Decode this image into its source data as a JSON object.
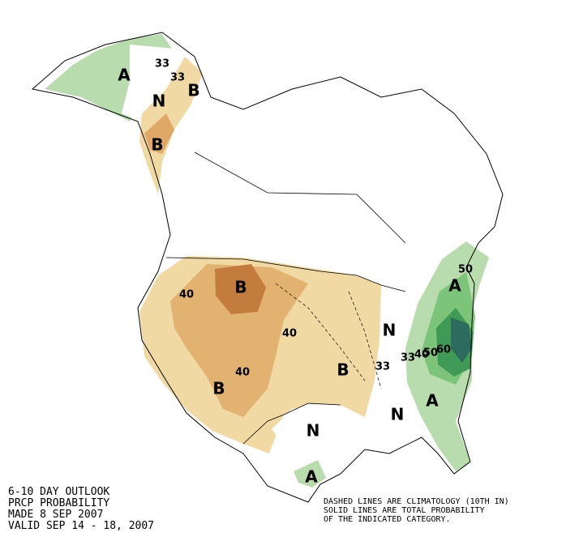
{
  "header": {
    "lines": [
      "6-10 DAY OUTLOOK",
      "PRCP PROBABILITY",
      "MADE  8 SEP 2007",
      "VALID  SEP 14 - 18, 2007"
    ]
  },
  "note": {
    "lines": [
      "DASHED LINES ARE CLIMATOLOGY (10TH IN)",
      "SOLID LINES ARE TOTAL PROBABILITY",
      "OF THE INDICATED CATEGORY."
    ]
  },
  "regions": [
    {
      "label": "A"
    },
    {
      "label": "N"
    },
    {
      "label": "B"
    },
    {
      "label": "B"
    },
    {
      "label": "B"
    },
    {
      "label": "B"
    },
    {
      "label": "B"
    },
    {
      "label": "N"
    },
    {
      "label": "N"
    },
    {
      "label": "N"
    },
    {
      "label": "A"
    },
    {
      "label": "A"
    },
    {
      "label": "A"
    }
  ],
  "contours": [
    {
      "label": "33"
    },
    {
      "label": "33"
    },
    {
      "label": "40"
    },
    {
      "label": "40"
    },
    {
      "label": "40"
    },
    {
      "label": "33"
    },
    {
      "label": "33"
    },
    {
      "label": "40"
    },
    {
      "label": "50"
    },
    {
      "label": "60"
    },
    {
      "label": "50"
    }
  ]
}
